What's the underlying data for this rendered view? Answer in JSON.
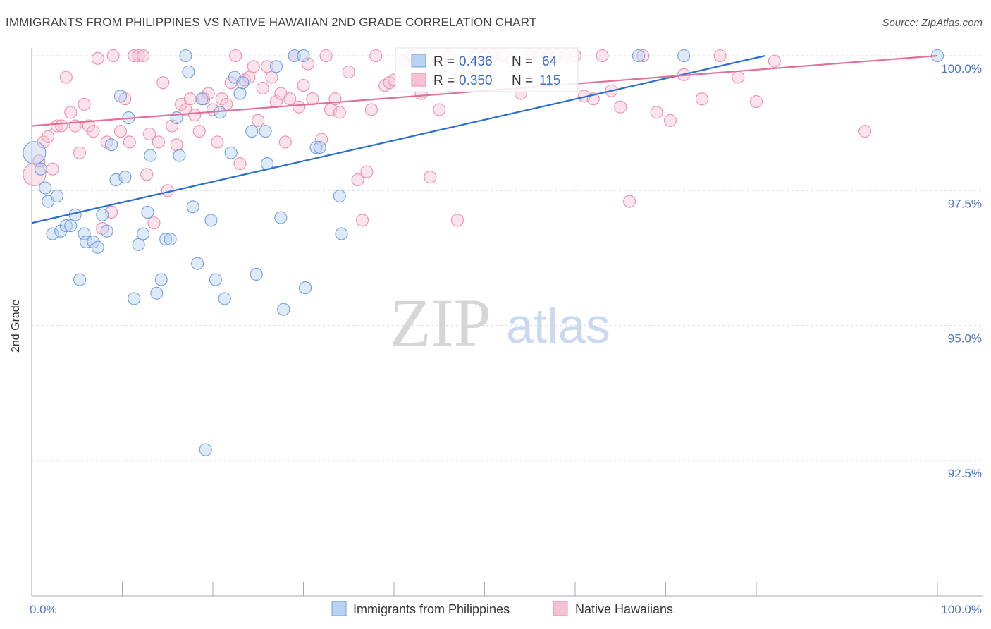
{
  "title": "IMMIGRANTS FROM PHILIPPINES VS NATIVE HAWAIIAN 2ND GRADE CORRELATION CHART",
  "source": "Source: ZipAtlas.com",
  "watermark": {
    "zip": "ZIP",
    "atlas": "atlas"
  },
  "colors": {
    "blue": "#6f9fe0",
    "blue_fill": "#b9d1f2",
    "blue_line": "#2a6fcf",
    "pink": "#ec8fac",
    "pink_fill": "#f6c2d3",
    "pink_line": "#e0709a",
    "axis_text": "#4a76c8"
  },
  "stats_box": {
    "row1": {
      "r_label": "R =",
      "r_value": "0.436",
      "n_label": "N =",
      "n_value": "64"
    },
    "row2": {
      "r_label": "R =",
      "r_value": "0.350",
      "n_label": "N =",
      "n_value": "115"
    }
  },
  "chart_data": {
    "type": "scatter",
    "title": "IMMIGRANTS FROM PHILIPPINES VS NATIVE HAWAIIAN 2ND GRADE CORRELATION CHART",
    "xlabel": "",
    "ylabel": "2nd Grade",
    "xlim": [
      0,
      100
    ],
    "ylim": [
      90.0,
      100.4
    ],
    "x_tick_labels": [
      "0.0%",
      "100.0%"
    ],
    "y_ticks": [
      {
        "value": 100.0,
        "label": "100.0%"
      },
      {
        "value": 97.5,
        "label": "97.5%"
      },
      {
        "value": 95.0,
        "label": "95.0%"
      },
      {
        "value": 92.5,
        "label": "92.5%"
      }
    ],
    "grid": "horizontal dashed",
    "legend_position": "bottom-center",
    "series": [
      {
        "name": "Immigrants from Philippines",
        "color": "#6f9fe0",
        "trend": {
          "x0": 0,
          "y0": 96.9,
          "x1": 81,
          "y1": 100.0
        },
        "points": [
          [
            0.3,
            98.2
          ],
          [
            1.0,
            97.9
          ],
          [
            1.5,
            97.55
          ],
          [
            1.8,
            97.3
          ],
          [
            2.3,
            96.7
          ],
          [
            2.8,
            97.4
          ],
          [
            3.2,
            96.75
          ],
          [
            3.8,
            96.85
          ],
          [
            4.3,
            96.85
          ],
          [
            4.8,
            97.05
          ],
          [
            5.3,
            95.85
          ],
          [
            5.8,
            96.7
          ],
          [
            6.0,
            96.55
          ],
          [
            6.8,
            96.55
          ],
          [
            7.3,
            96.45
          ],
          [
            7.8,
            97.05
          ],
          [
            8.3,
            96.75
          ],
          [
            8.8,
            98.35
          ],
          [
            9.3,
            97.7
          ],
          [
            9.8,
            99.25
          ],
          [
            10.3,
            97.75
          ],
          [
            10.7,
            98.85
          ],
          [
            11.3,
            95.5
          ],
          [
            11.8,
            96.5
          ],
          [
            12.3,
            96.7
          ],
          [
            12.8,
            97.1
          ],
          [
            13.1,
            98.15
          ],
          [
            13.8,
            95.6
          ],
          [
            14.3,
            95.85
          ],
          [
            14.8,
            96.6
          ],
          [
            15.3,
            96.6
          ],
          [
            16.0,
            98.85
          ],
          [
            16.3,
            98.15
          ],
          [
            17.0,
            100.0
          ],
          [
            17.3,
            99.7
          ],
          [
            17.8,
            97.2
          ],
          [
            18.3,
            96.15
          ],
          [
            18.8,
            99.2
          ],
          [
            19.2,
            92.7
          ],
          [
            19.8,
            96.95
          ],
          [
            20.3,
            95.85
          ],
          [
            20.8,
            98.95
          ],
          [
            21.3,
            95.5
          ],
          [
            22.0,
            98.2
          ],
          [
            22.4,
            99.6
          ],
          [
            23.0,
            99.3
          ],
          [
            23.3,
            99.5
          ],
          [
            24.3,
            98.6
          ],
          [
            24.8,
            95.95
          ],
          [
            25.8,
            98.6
          ],
          [
            26.0,
            98.0
          ],
          [
            27.0,
            99.8
          ],
          [
            27.5,
            97.0
          ],
          [
            27.8,
            95.3
          ],
          [
            29.0,
            100.0
          ],
          [
            30.0,
            100.0
          ],
          [
            30.2,
            95.7
          ],
          [
            31.4,
            98.3
          ],
          [
            31.8,
            98.3
          ],
          [
            34.0,
            97.4
          ],
          [
            34.2,
            96.7
          ],
          [
            67.0,
            100.0
          ],
          [
            72.0,
            100.0
          ],
          [
            100.0,
            100.0
          ]
        ]
      },
      {
        "name": "Native Hawaiians",
        "color": "#ec8fac",
        "trend": {
          "x0": 0,
          "y0": 98.7,
          "x1": 100,
          "y1": 100.0
        },
        "points": [
          [
            0.3,
            97.8
          ],
          [
            0.8,
            98.05
          ],
          [
            1.3,
            98.4
          ],
          [
            1.8,
            98.5
          ],
          [
            2.3,
            97.9
          ],
          [
            2.8,
            98.7
          ],
          [
            3.3,
            98.7
          ],
          [
            3.8,
            99.6
          ],
          [
            4.3,
            98.95
          ],
          [
            4.8,
            98.7
          ],
          [
            5.3,
            98.2
          ],
          [
            5.8,
            99.1
          ],
          [
            6.3,
            98.7
          ],
          [
            6.8,
            98.6
          ],
          [
            7.3,
            99.95
          ],
          [
            7.8,
            96.8
          ],
          [
            8.3,
            98.4
          ],
          [
            8.8,
            97.1
          ],
          [
            9.0,
            100.0
          ],
          [
            9.8,
            98.6
          ],
          [
            10.3,
            99.2
          ],
          [
            10.8,
            98.4
          ],
          [
            11.3,
            100.0
          ],
          [
            11.8,
            100.0
          ],
          [
            12.3,
            100.0
          ],
          [
            12.7,
            97.8
          ],
          [
            13.0,
            98.55
          ],
          [
            13.5,
            96.9
          ],
          [
            14.0,
            98.4
          ],
          [
            14.5,
            99.5
          ],
          [
            15.0,
            97.5
          ],
          [
            15.5,
            98.7
          ],
          [
            16.0,
            98.35
          ],
          [
            16.5,
            99.1
          ],
          [
            17.0,
            99.0
          ],
          [
            17.5,
            99.2
          ],
          [
            18.0,
            98.9
          ],
          [
            18.5,
            98.6
          ],
          [
            19.0,
            99.2
          ],
          [
            19.5,
            99.3
          ],
          [
            20.0,
            99.0
          ],
          [
            20.5,
            98.4
          ],
          [
            21.0,
            99.2
          ],
          [
            21.5,
            99.1
          ],
          [
            22.0,
            99.5
          ],
          [
            22.5,
            100.0
          ],
          [
            23.0,
            98.0
          ],
          [
            23.5,
            99.55
          ],
          [
            24.0,
            99.6
          ],
          [
            24.5,
            99.8
          ],
          [
            25.0,
            98.8
          ],
          [
            25.5,
            99.4
          ],
          [
            26.0,
            99.8
          ],
          [
            26.5,
            99.6
          ],
          [
            27.0,
            99.15
          ],
          [
            27.5,
            99.3
          ],
          [
            28.0,
            98.4
          ],
          [
            28.5,
            99.2
          ],
          [
            29.0,
            100.0
          ],
          [
            29.5,
            99.05
          ],
          [
            30.0,
            99.45
          ],
          [
            30.5,
            99.85
          ],
          [
            31.0,
            99.2
          ],
          [
            32.0,
            98.45
          ],
          [
            32.5,
            100.0
          ],
          [
            33.0,
            99.0
          ],
          [
            33.5,
            99.2
          ],
          [
            34.0,
            98.95
          ],
          [
            35.0,
            99.7
          ],
          [
            36.0,
            97.7
          ],
          [
            36.5,
            96.95
          ],
          [
            37.0,
            97.85
          ],
          [
            37.5,
            99.0
          ],
          [
            38.0,
            100.0
          ],
          [
            39.0,
            99.45
          ],
          [
            39.5,
            99.5
          ],
          [
            40.0,
            99.55
          ],
          [
            41.0,
            99.9
          ],
          [
            42.0,
            100.0
          ],
          [
            43.0,
            99.3
          ],
          [
            44.0,
            97.75
          ],
          [
            45.0,
            99.0
          ],
          [
            46.0,
            100.0
          ],
          [
            47.0,
            96.95
          ],
          [
            48.0,
            99.6
          ],
          [
            49.0,
            100.0
          ],
          [
            50.0,
            100.0
          ],
          [
            51.0,
            100.0
          ],
          [
            52.0,
            100.0
          ],
          [
            53.0,
            99.9
          ],
          [
            54.0,
            99.3
          ],
          [
            55.0,
            100.0
          ],
          [
            56.0,
            100.0
          ],
          [
            57.0,
            100.0
          ],
          [
            58.0,
            100.0
          ],
          [
            59.0,
            100.0
          ],
          [
            60.0,
            100.0
          ],
          [
            61.0,
            99.25
          ],
          [
            62.0,
            99.2
          ],
          [
            63.0,
            100.0
          ],
          [
            64.0,
            99.35
          ],
          [
            65.0,
            99.05
          ],
          [
            66.0,
            97.3
          ],
          [
            67.5,
            100.0
          ],
          [
            69.0,
            98.95
          ],
          [
            70.5,
            98.8
          ],
          [
            72.0,
            99.65
          ],
          [
            74.0,
            99.2
          ],
          [
            76.0,
            100.0
          ],
          [
            78.0,
            99.6
          ],
          [
            80.0,
            99.15
          ],
          [
            82.0,
            99.9
          ],
          [
            92.0,
            98.6
          ]
        ]
      }
    ]
  },
  "legend": {
    "item1": "Immigrants from Philippines",
    "item2": "Native Hawaiians"
  },
  "axes": {
    "x_left_label": "0.0%",
    "x_right_label": "100.0%",
    "y_axis_label": "2nd Grade"
  }
}
